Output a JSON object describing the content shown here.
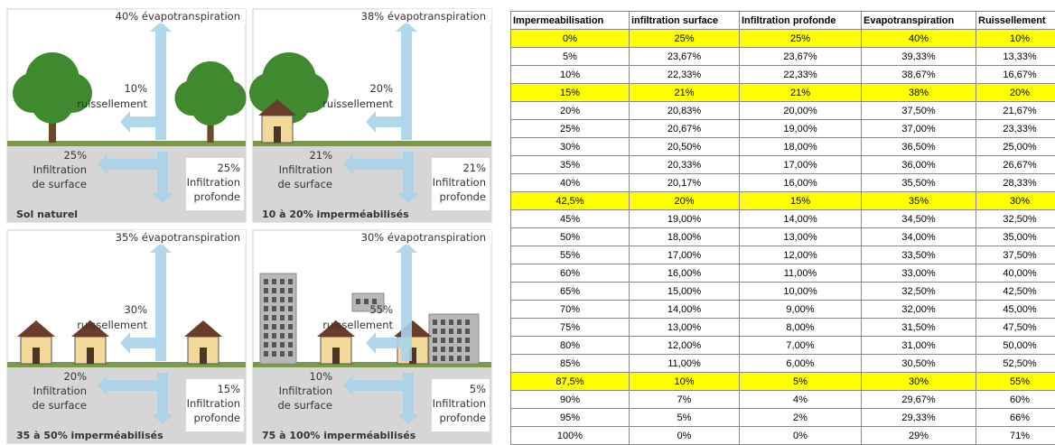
{
  "diagram": {
    "panels": [
      {
        "evapotranspiration": "40% évapotranspiration",
        "ruissellement": [
          "10%",
          "ruissellement"
        ],
        "infiltration_surface": [
          "25%",
          "Infiltration",
          "de surface"
        ],
        "infiltration_profonde": [
          "25%",
          "Infiltration",
          "profonde"
        ],
        "caption": "Sol naturel"
      },
      {
        "evapotranspiration": "38% évapotranspiration",
        "ruissellement": [
          "20%",
          "ruissellement"
        ],
        "infiltration_surface": [
          "21%",
          "Infiltration",
          "de surface"
        ],
        "infiltration_profonde": [
          "21%",
          "Infiltration",
          "profonde"
        ],
        "caption": "10 à 20% imperméabilisés"
      },
      {
        "evapotranspiration": "35% évapotranspiration",
        "ruissellement": [
          "30%",
          "ruissellement"
        ],
        "infiltration_surface": [
          "20%",
          "Infiltration",
          "de surface"
        ],
        "infiltration_profonde": [
          "15%",
          "Infiltration",
          "profonde"
        ],
        "caption": "35 à 50% imperméabilisés"
      },
      {
        "evapotranspiration": "30% évapotranspiration",
        "ruissellement": [
          "55%",
          "ruissellement"
        ],
        "infiltration_surface": [
          "10%",
          "Infiltration",
          "de surface"
        ],
        "infiltration_profonde": [
          "5%",
          "Infiltration",
          "profonde"
        ],
        "caption": "75 à 100% imperméabilisés"
      }
    ]
  },
  "table": {
    "header": [
      "Impermeabilisation",
      "infiltration surface",
      "Infiltration profonde",
      "Evapotranspiration",
      "Ruissellement"
    ],
    "rows": [
      [
        "0%",
        "25%",
        "25%",
        "40%",
        "10%"
      ],
      [
        "5%",
        "23,67%",
        "23,67%",
        "39,33%",
        "13,33%"
      ],
      [
        "10%",
        "22,33%",
        "22,33%",
        "38,67%",
        "16,67%"
      ],
      [
        "15%",
        "21%",
        "21%",
        "38%",
        "20%"
      ],
      [
        "20%",
        "20,83%",
        "20,00%",
        "37,50%",
        "21,67%"
      ],
      [
        "25%",
        "20,67%",
        "19,00%",
        "37,00%",
        "23,33%"
      ],
      [
        "30%",
        "20,50%",
        "18,00%",
        "36,50%",
        "25,00%"
      ],
      [
        "35%",
        "20,33%",
        "17,00%",
        "36,00%",
        "26,67%"
      ],
      [
        "40%",
        "20,17%",
        "16,00%",
        "35,50%",
        "28,33%"
      ],
      [
        "42,5%",
        "20%",
        "15%",
        "35%",
        "30%"
      ],
      [
        "45%",
        "19,00%",
        "14,00%",
        "34,50%",
        "32,50%"
      ],
      [
        "50%",
        "18,00%",
        "13,00%",
        "34,00%",
        "35,00%"
      ],
      [
        "55%",
        "17,00%",
        "12,00%",
        "33,50%",
        "37,50%"
      ],
      [
        "60%",
        "16,00%",
        "11,00%",
        "33,00%",
        "40,00%"
      ],
      [
        "65%",
        "15,00%",
        "10,00%",
        "32,50%",
        "42,50%"
      ],
      [
        "70%",
        "14,00%",
        "9,00%",
        "32,00%",
        "45,00%"
      ],
      [
        "75%",
        "13,00%",
        "8,00%",
        "31,50%",
        "47,50%"
      ],
      [
        "80%",
        "12,00%",
        "7,00%",
        "31,00%",
        "50,00%"
      ],
      [
        "85%",
        "11,00%",
        "6,00%",
        "30,50%",
        "52,50%"
      ],
      [
        "87,5%",
        "10%",
        "5%",
        "30%",
        "55%"
      ],
      [
        "90%",
        "7%",
        "4%",
        "29,67%",
        "60%"
      ],
      [
        "95%",
        "5%",
        "2%",
        "29,33%",
        "66%"
      ],
      [
        "100%",
        "0%",
        "0%",
        "29%",
        "71%"
      ]
    ]
  }
}
